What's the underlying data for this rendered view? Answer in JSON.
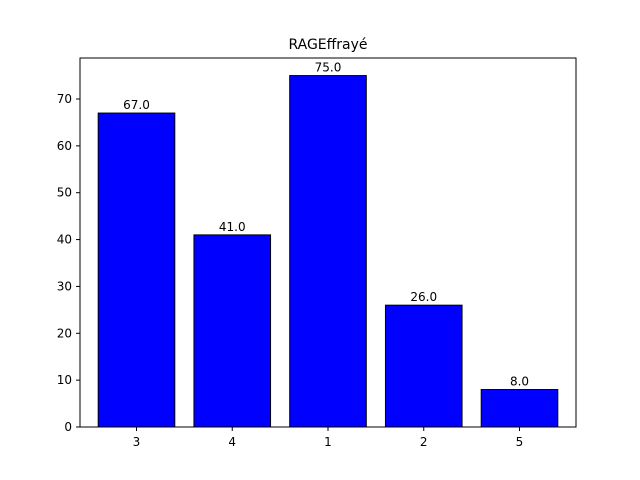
{
  "chart_data": {
    "type": "bar",
    "title": "RAGEffrayé",
    "xlabel": "",
    "ylabel": "",
    "categories": [
      "3",
      "4",
      "1",
      "2",
      "5"
    ],
    "values": [
      67.0,
      41.0,
      75.0,
      26.0,
      8.0
    ],
    "data_labels": [
      "67.0",
      "41.0",
      "75.0",
      "26.0",
      "8.0"
    ],
    "ylim": [
      0,
      78.75
    ],
    "yticks": [
      0,
      10,
      20,
      30,
      40,
      50,
      60,
      70
    ],
    "ytick_labels": [
      "0",
      "10",
      "20",
      "30",
      "40",
      "50",
      "60",
      "70"
    ],
    "grid": false,
    "bar_color": "#0000ff",
    "bar_edge_color": "#000000"
  }
}
